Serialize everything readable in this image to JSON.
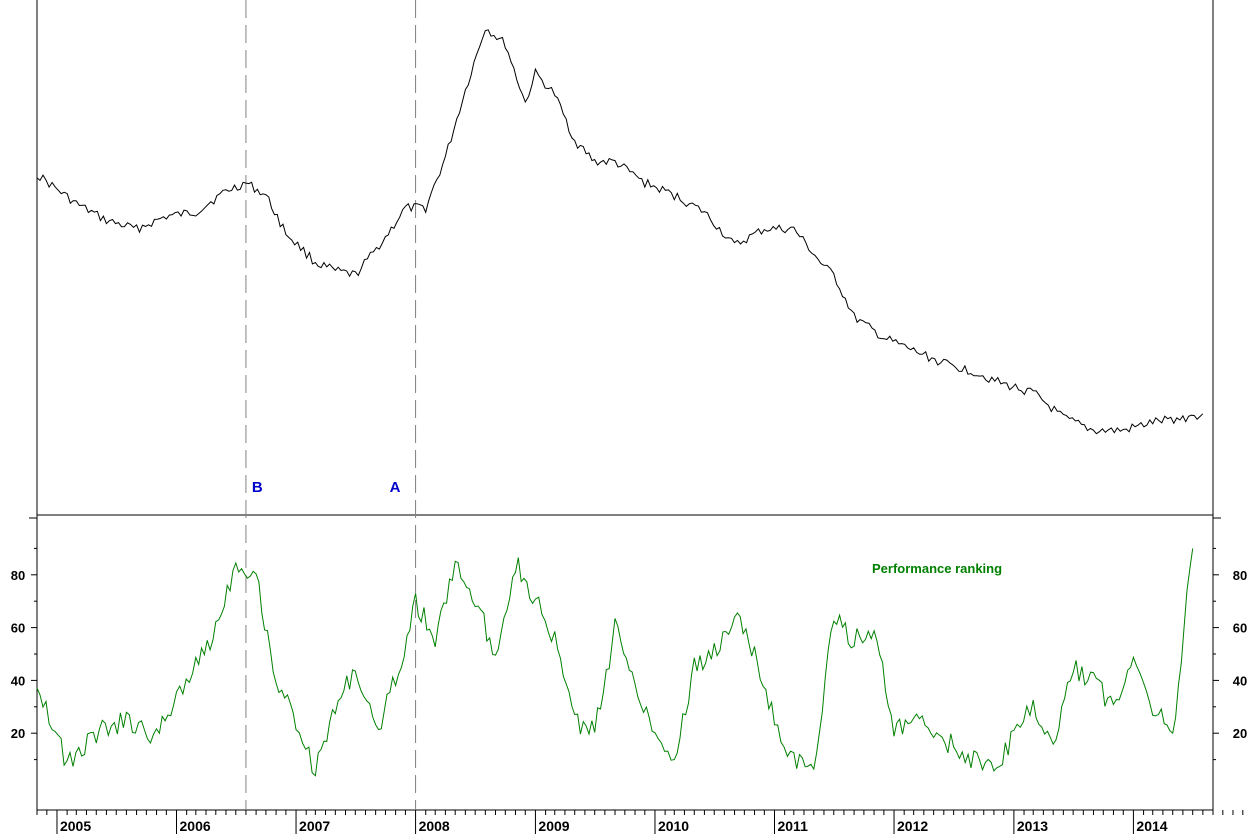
{
  "chart_data": [
    {
      "type": "line",
      "panel": "price",
      "title": "",
      "xlabel": "",
      "ylabel": "",
      "y_axis_labels": "none",
      "x": [
        "2004-11-01",
        "2005-03-01",
        "2005-06-01",
        "2005-09-01",
        "2005-12-01",
        "2006-03-01",
        "2006-06-01",
        "2006-08-01",
        "2006-10-01",
        "2006-12-01",
        "2007-03-01",
        "2007-05-01",
        "2007-07-01",
        "2007-10-01",
        "2007-12-01",
        "2008-02-01",
        "2008-04-01",
        "2008-06-01",
        "2008-08-01",
        "2008-10-01",
        "2008-12-01",
        "2009-01-01",
        "2009-03-01",
        "2009-05-01",
        "2009-07-01",
        "2009-09-01",
        "2009-12-01",
        "2010-03-01",
        "2010-06-01",
        "2010-09-01",
        "2010-12-01",
        "2011-03-01",
        "2011-06-01",
        "2011-07-01",
        "2011-09-01",
        "2011-12-01",
        "2012-03-01",
        "2012-06-01",
        "2012-09-01",
        "2012-12-01",
        "2013-03-01",
        "2013-06-01",
        "2013-09-01",
        "2013-12-01",
        "2014-03-01",
        "2014-06-01",
        "2014-08-01"
      ],
      "values": [
        68,
        61,
        57,
        55,
        58,
        59,
        64,
        66,
        63,
        54,
        47,
        45,
        44,
        53,
        60,
        60,
        72,
        88,
        103,
        99,
        85,
        92,
        87,
        76,
        71,
        71,
        66,
        63,
        59,
        51,
        55,
        55,
        46,
        44,
        34,
        29,
        26,
        23,
        21,
        18,
        16,
        10,
        7,
        7,
        9,
        10,
        11
      ],
      "ylim": [
        0,
        100
      ],
      "color": "#000000"
    },
    {
      "type": "line",
      "panel": "ranking",
      "name": "Performance ranking",
      "title": "",
      "x": [
        "2004-11-01",
        "2005-02-01",
        "2005-05-01",
        "2005-08-01",
        "2005-11-01",
        "2006-01-01",
        "2006-03-01",
        "2006-05-01",
        "2006-07-01",
        "2006-09-01",
        "2006-11-01",
        "2007-01-01",
        "2007-03-01",
        "2007-05-01",
        "2007-07-01",
        "2007-09-01",
        "2007-11-01",
        "2008-01-01",
        "2008-03-01",
        "2008-05-01",
        "2008-07-01",
        "2008-09-01",
        "2008-11-01",
        "2009-01-01",
        "2009-03-01",
        "2009-05-01",
        "2009-07-01",
        "2009-09-01",
        "2009-11-01",
        "2010-01-01",
        "2010-03-01",
        "2010-05-01",
        "2010-07-01",
        "2010-09-01",
        "2010-11-01",
        "2011-01-01",
        "2011-03-01",
        "2011-05-01",
        "2011-07-01",
        "2011-09-01",
        "2011-11-01",
        "2012-01-01",
        "2012-03-01",
        "2012-05-01",
        "2012-07-01",
        "2012-09-01",
        "2012-11-01",
        "2013-01-01",
        "2013-03-01",
        "2013-05-01",
        "2013-07-01",
        "2013-09-01",
        "2013-11-01",
        "2014-01-01",
        "2014-03-01",
        "2014-05-01",
        "2014-07-01"
      ],
      "values": [
        40,
        8,
        20,
        25,
        18,
        35,
        45,
        60,
        85,
        80,
        40,
        25,
        5,
        30,
        45,
        20,
        40,
        70,
        55,
        85,
        70,
        50,
        85,
        70,
        55,
        25,
        20,
        60,
        40,
        20,
        10,
        45,
        50,
        65,
        50,
        25,
        10,
        5,
        65,
        55,
        60,
        20,
        25,
        20,
        15,
        10,
        5,
        20,
        30,
        15,
        45,
        40,
        30,
        50,
        30,
        20,
        90
      ],
      "ylim": [
        0,
        100
      ],
      "yticks": [
        20,
        40,
        60,
        80
      ],
      "color": "#008000"
    }
  ],
  "x_axis": {
    "years": [
      "2005",
      "2006",
      "2007",
      "2008",
      "2009",
      "2010",
      "2011",
      "2012",
      "2013",
      "2014"
    ]
  },
  "markers": [
    {
      "label": "B",
      "date": "2006-08-01"
    },
    {
      "label": "A",
      "date": "2008-01-01"
    }
  ],
  "annotations": {
    "series_label": "Performance ranking"
  },
  "colors": {
    "price": "#000000",
    "ranking": "#008000",
    "marker_label": "#0000cc",
    "marker_line": "#808080"
  }
}
